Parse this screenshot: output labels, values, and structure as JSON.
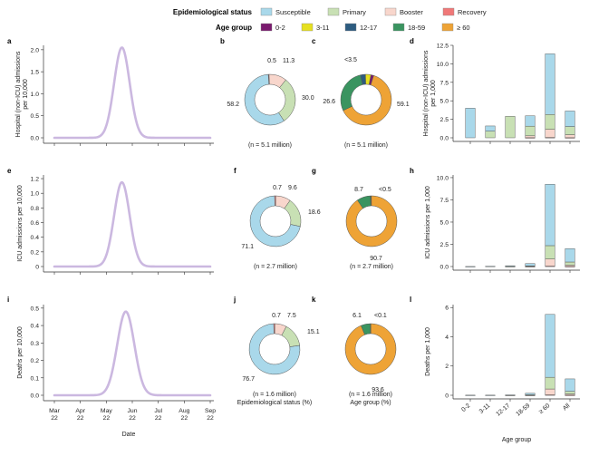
{
  "legend": {
    "status_title": "Epidemiological status",
    "status_items": [
      {
        "label": "Susceptible",
        "color": "#a9d8ea"
      },
      {
        "label": "Primary",
        "color": "#c8e0b4"
      },
      {
        "label": "Booster",
        "color": "#f8d6cc"
      },
      {
        "label": "Recovery",
        "color": "#f07878"
      }
    ],
    "age_title": "Age group",
    "age_items": [
      {
        "label": "0-2",
        "color": "#7a1a6e"
      },
      {
        "label": "3-11",
        "color": "#e6e020"
      },
      {
        "label": "12-17",
        "color": "#2d5c80"
      },
      {
        "label": "18-59",
        "color": "#3a9460"
      },
      {
        "label": "≥ 60",
        "color": "#eea336"
      }
    ]
  },
  "chart_data": [
    {
      "panel": "a",
      "type": "line",
      "ylabel": "Hospital (non-ICU) admissions per 10,000",
      "yticks": [
        "0.0",
        "0.5",
        "1.0",
        "1.5",
        "2.0"
      ],
      "ylim": [
        0,
        2.1
      ],
      "peak": 2.05,
      "peak_x": 2.6,
      "width": 0.3,
      "xticks": [],
      "xlabel": "",
      "color": "#cbb8e0"
    },
    {
      "panel": "e",
      "type": "line",
      "ylabel": "ICU admissions per 10,000",
      "yticks": [
        "0",
        "0.2",
        "0.4",
        "0.6",
        "0.8",
        "1.0",
        "1.2"
      ],
      "ylim": [
        0,
        1.25
      ],
      "peak": 1.15,
      "peak_x": 2.6,
      "width": 0.3,
      "xticks": [],
      "xlabel": "",
      "color": "#cbb8e0"
    },
    {
      "panel": "i",
      "type": "line",
      "ylabel": "Deaths per 10,000",
      "yticks": [
        "0.0",
        "0.1",
        "0.2",
        "0.3",
        "0.4",
        "0.5"
      ],
      "ylim": [
        0,
        0.52
      ],
      "peak": 0.48,
      "peak_x": 2.75,
      "width": 0.33,
      "xticks": [
        "Mar 22",
        "Apr 22",
        "May 22",
        "Jun 22",
        "Jul 22",
        "Aug 22",
        "Sep 22"
      ],
      "xlabel": "Date",
      "color": "#cbb8e0"
    },
    {
      "panel": "b",
      "type": "pie",
      "n_label": "(n = 5.1 million)",
      "sublabel": "",
      "slices": [
        {
          "name": "Recovery",
          "value": 0.5
        },
        {
          "name": "Booster",
          "value": 11.3
        },
        {
          "name": "Primary",
          "value": 30.0
        },
        {
          "name": "Susceptible",
          "value": 58.2
        }
      ],
      "labels": [
        "0.5",
        "11.3",
        "30.0",
        "58.2"
      ]
    },
    {
      "panel": "c",
      "type": "pie",
      "n_label": "(n = 5.1 million)",
      "sublabel": "",
      "slices": [
        {
          "name": "0-2",
          "value": 1.7
        },
        {
          "name": "≥ 60",
          "value": 59.1
        },
        {
          "name": "18-59",
          "value": 26.6
        },
        {
          "name": "12-17",
          "value": 3.0
        },
        {
          "name": "3-11",
          "value": 3.2
        }
      ],
      "labels": [
        "<3.5",
        "59.1",
        "26.6"
      ]
    },
    {
      "panel": "f",
      "type": "pie",
      "n_label": "(n = 2.7 million)",
      "sublabel": "",
      "slices": [
        {
          "name": "Recovery",
          "value": 0.7
        },
        {
          "name": "Booster",
          "value": 9.6
        },
        {
          "name": "Primary",
          "value": 18.6
        },
        {
          "name": "Susceptible",
          "value": 71.1
        }
      ],
      "labels": [
        "0.7",
        "9.6",
        "18.6",
        "71.1"
      ]
    },
    {
      "panel": "g",
      "type": "pie",
      "n_label": "(n = 2.7 million)",
      "sublabel": "",
      "slices": [
        {
          "name": "0-2",
          "value": 0.2
        },
        {
          "name": "≥ 60",
          "value": 90.7
        },
        {
          "name": "18-59",
          "value": 8.7
        },
        {
          "name": "12-17",
          "value": 0.2
        },
        {
          "name": "3-11",
          "value": 0.2
        }
      ],
      "labels": [
        "8.7",
        "<0.5",
        "90.7"
      ]
    },
    {
      "panel": "j",
      "type": "pie",
      "n_label": "(n = 1.6 million)",
      "sublabel": "Epidemiological status (%)",
      "slices": [
        {
          "name": "Recovery",
          "value": 0.7
        },
        {
          "name": "Booster",
          "value": 7.5
        },
        {
          "name": "Primary",
          "value": 15.1
        },
        {
          "name": "Susceptible",
          "value": 76.7
        }
      ],
      "labels": [
        "0.7",
        "7.5",
        "15.1",
        "76.7"
      ]
    },
    {
      "panel": "k",
      "type": "pie",
      "n_label": "(n = 1.6 million)",
      "sublabel": "Age group (%)",
      "slices": [
        {
          "name": "0-2",
          "value": 0.03
        },
        {
          "name": "≥ 60",
          "value": 93.6
        },
        {
          "name": "18-59",
          "value": 6.1
        },
        {
          "name": "12-17",
          "value": 0.03
        },
        {
          "name": "3-11",
          "value": 0.03
        }
      ],
      "labels": [
        "6.1",
        "<0.1",
        "93.6"
      ]
    },
    {
      "panel": "d",
      "type": "bar",
      "stacked": true,
      "ylabel": "Hospital (non-ICU) admissions per 1,000",
      "yticks": [
        "0.0",
        "2.5",
        "5.0",
        "7.5",
        "10.0",
        "12.5"
      ],
      "ylim": [
        0,
        12.5
      ],
      "categories": [
        "0-2",
        "3-11",
        "12-17",
        "18-59",
        "≥ 60",
        "All"
      ],
      "show_xticklabels": false,
      "xlabel": "",
      "series": [
        {
          "name": "Recovery",
          "values": [
            0,
            0,
            0,
            0.02,
            0.05,
            0.02
          ]
        },
        {
          "name": "Booster",
          "values": [
            0,
            0,
            0,
            0.25,
            1.1,
            0.4
          ]
        },
        {
          "name": "Primary",
          "values": [
            0,
            0.9,
            2.9,
            1.3,
            2.0,
            1.1
          ]
        },
        {
          "name": "Susceptible",
          "values": [
            4.0,
            0.7,
            0,
            1.4,
            8.2,
            2.1
          ]
        }
      ]
    },
    {
      "panel": "h",
      "type": "bar",
      "stacked": true,
      "ylabel": "ICU admissions per 1,000",
      "yticks": [
        "0.0",
        "2.5",
        "5.0",
        "7.5",
        "10.0"
      ],
      "ylim": [
        0,
        10.3
      ],
      "categories": [
        "0-2",
        "3-11",
        "12-17",
        "18-59",
        "≥ 60",
        "All"
      ],
      "show_xticklabels": false,
      "xlabel": "",
      "series": [
        {
          "name": "Recovery",
          "values": [
            0,
            0,
            0,
            0.01,
            0.05,
            0.01
          ]
        },
        {
          "name": "Booster",
          "values": [
            0,
            0,
            0,
            0.02,
            0.8,
            0.15
          ]
        },
        {
          "name": "Primary",
          "values": [
            0,
            0,
            0.01,
            0.05,
            1.5,
            0.35
          ]
        },
        {
          "name": "Susceptible",
          "values": [
            0.01,
            0.04,
            0.08,
            0.25,
            6.9,
            1.5
          ]
        }
      ]
    },
    {
      "panel": "l",
      "type": "bar",
      "stacked": true,
      "ylabel": "Deaths per 1,000",
      "yticks": [
        "0",
        "2",
        "4",
        "6"
      ],
      "ylim": [
        0,
        6.2
      ],
      "categories": [
        "0-2",
        "3-11",
        "12-17",
        "18-59",
        "≥ 60",
        "All"
      ],
      "show_xticklabels": true,
      "xlabel": "Age group",
      "series": [
        {
          "name": "Recovery",
          "values": [
            0,
            0,
            0,
            0.005,
            0.03,
            0.01
          ]
        },
        {
          "name": "Booster",
          "values": [
            0,
            0,
            0,
            0.01,
            0.4,
            0.08
          ]
        },
        {
          "name": "Primary",
          "values": [
            0,
            0,
            0.005,
            0.02,
            0.8,
            0.18
          ]
        },
        {
          "name": "Susceptible",
          "values": [
            0.01,
            0.01,
            0.02,
            0.1,
            4.3,
            0.85
          ]
        }
      ]
    }
  ]
}
